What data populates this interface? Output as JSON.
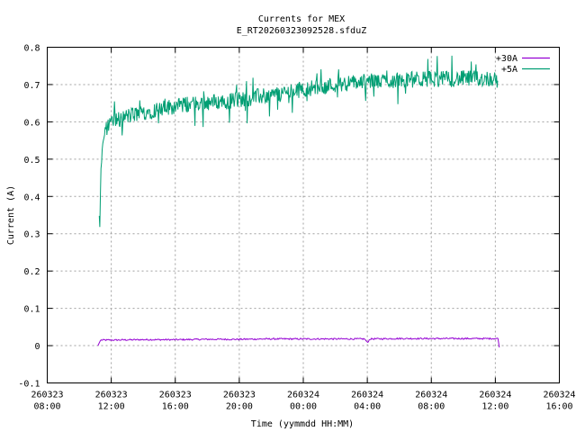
{
  "chart_data": {
    "type": "line",
    "title": "Currents for MEX",
    "subtitle": "E_RT20260323092528.sfduZ",
    "xlabel": "Time (yymmdd HH:MM)",
    "ylabel": "Current (A)",
    "xlim": [
      "2026-03-23 08:00",
      "2026-03-24 16:00"
    ],
    "ylim": [
      -0.1,
      0.8
    ],
    "grid": true,
    "legend_position": "top-right",
    "x_ticks": [
      {
        "date": "260323",
        "time": "08:00"
      },
      {
        "date": "260323",
        "time": "12:00"
      },
      {
        "date": "260323",
        "time": "16:00"
      },
      {
        "date": "260323",
        "time": "20:00"
      },
      {
        "date": "260324",
        "time": "00:00"
      },
      {
        "date": "260324",
        "time": "04:00"
      },
      {
        "date": "260324",
        "time": "08:00"
      },
      {
        "date": "260324",
        "time": "12:00"
      },
      {
        "date": "260324",
        "time": "16:00"
      }
    ],
    "y_ticks": [
      "-0.1",
      "0",
      "0.1",
      "0.2",
      "0.3",
      "0.4",
      "0.5",
      "0.6",
      "0.7",
      "0.8"
    ],
    "series": [
      {
        "name": "+30A",
        "color": "#9400d3",
        "points": [
          [
            "2026-03-23 11:10",
            0.0
          ],
          [
            "2026-03-23 11:20",
            0.015
          ],
          [
            "2026-03-23 12:00",
            0.015
          ],
          [
            "2026-03-23 14:00",
            0.016
          ],
          [
            "2026-03-23 16:00",
            0.016
          ],
          [
            "2026-03-23 18:00",
            0.017
          ],
          [
            "2026-03-23 20:00",
            0.017
          ],
          [
            "2026-03-23 22:00",
            0.018
          ],
          [
            "2026-03-24 00:00",
            0.018
          ],
          [
            "2026-03-24 02:00",
            0.018
          ],
          [
            "2026-03-24 03:50",
            0.018
          ],
          [
            "2026-03-24 04:00",
            0.008
          ],
          [
            "2026-03-24 04:10",
            0.018
          ],
          [
            "2026-03-24 06:00",
            0.019
          ],
          [
            "2026-03-24 08:00",
            0.019
          ],
          [
            "2026-03-24 10:00",
            0.019
          ],
          [
            "2026-03-24 12:00",
            0.019
          ],
          [
            "2026-03-24 12:10",
            0.019
          ],
          [
            "2026-03-24 12:15",
            -0.005
          ]
        ]
      },
      {
        "name": "+5A",
        "color": "#009e73",
        "points": [
          [
            "2026-03-23 11:15",
            0.36
          ],
          [
            "2026-03-23 11:17",
            0.3
          ],
          [
            "2026-03-23 11:20",
            0.45
          ],
          [
            "2026-03-23 11:25",
            0.52
          ],
          [
            "2026-03-23 11:30",
            0.56
          ],
          [
            "2026-03-23 11:40",
            0.58
          ],
          [
            "2026-03-23 12:00",
            0.6
          ],
          [
            "2026-03-23 13:00",
            0.615
          ],
          [
            "2026-03-23 14:00",
            0.625
          ],
          [
            "2026-03-23 15:00",
            0.635
          ],
          [
            "2026-03-23 16:00",
            0.642
          ],
          [
            "2026-03-23 17:00",
            0.648
          ],
          [
            "2026-03-23 18:00",
            0.652
          ],
          [
            "2026-03-23 19:00",
            0.655
          ],
          [
            "2026-03-23 20:00",
            0.66
          ],
          [
            "2026-03-23 21:00",
            0.666
          ],
          [
            "2026-03-23 22:00",
            0.672
          ],
          [
            "2026-03-23 23:00",
            0.68
          ],
          [
            "2026-03-24 00:00",
            0.688
          ],
          [
            "2026-03-24 01:00",
            0.694
          ],
          [
            "2026-03-24 02:00",
            0.7
          ],
          [
            "2026-03-24 03:00",
            0.705
          ],
          [
            "2026-03-24 04:00",
            0.708
          ],
          [
            "2026-03-24 05:00",
            0.71
          ],
          [
            "2026-03-24 06:00",
            0.712
          ],
          [
            "2026-03-24 07:00",
            0.714
          ],
          [
            "2026-03-24 08:00",
            0.715
          ],
          [
            "2026-03-24 09:00",
            0.715
          ],
          [
            "2026-03-24 10:00",
            0.716
          ],
          [
            "2026-03-24 11:00",
            0.716
          ],
          [
            "2026-03-24 12:00",
            0.716
          ],
          [
            "2026-03-24 12:10",
            0.71
          ]
        ]
      }
    ]
  }
}
